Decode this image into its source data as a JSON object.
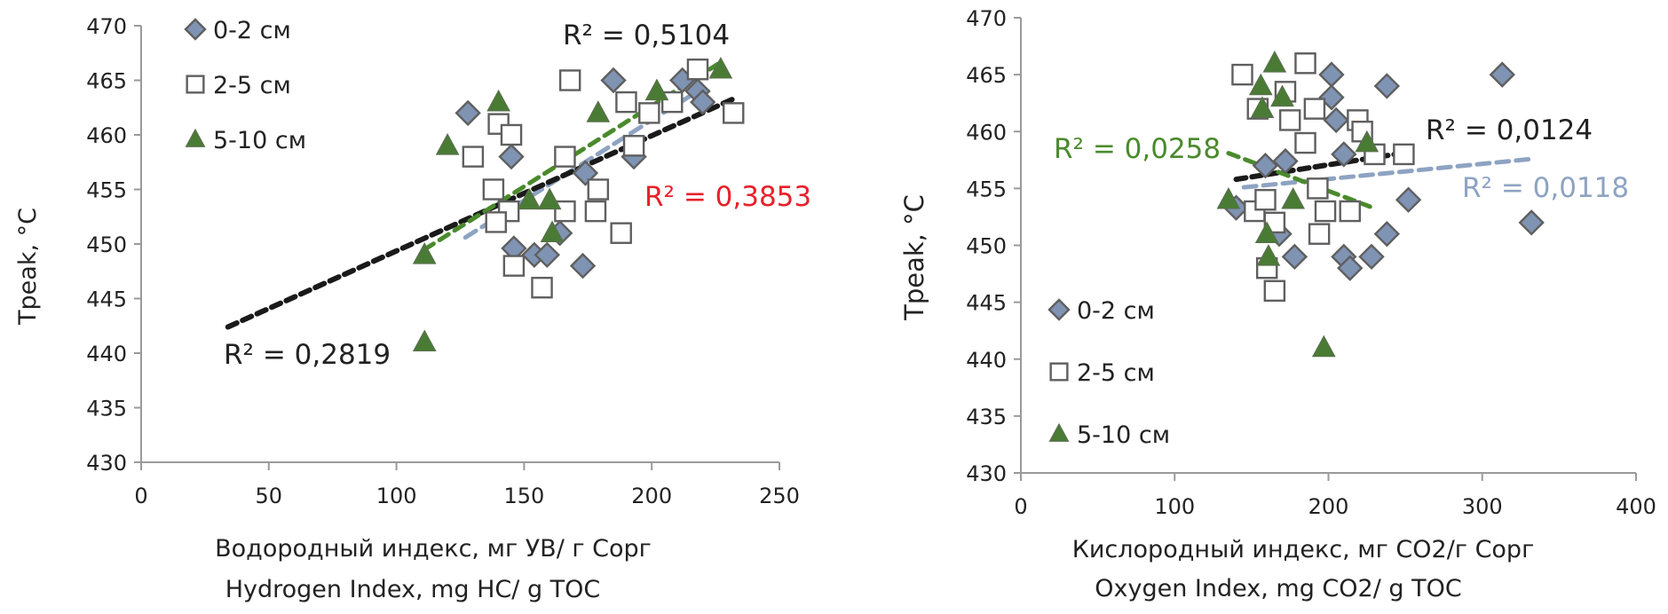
{
  "chart_data": [
    {
      "type": "scatter",
      "title": "",
      "xlabel": "Водородный индекс, мг УВ/ г Сорг",
      "xlabel2": "Hydrogen Index, mg HC/ g TOC",
      "ylabel": "Tpeak, °C",
      "xlim": [
        0,
        250
      ],
      "ylim": [
        430,
        470
      ],
      "xticks": [
        "0",
        "50",
        "100",
        "150",
        "200",
        "250"
      ],
      "yticks": [
        "430",
        "435",
        "440",
        "445",
        "450",
        "455",
        "460",
        "465",
        "470"
      ],
      "grid": false,
      "legend_position": "top-left",
      "series": [
        {
          "name": "0-2 см",
          "marker": "diamond",
          "color": "#7f93b3",
          "points": [
            [
              128,
              462
            ],
            [
              145,
              458
            ],
            [
              185,
              465
            ],
            [
              193,
              458
            ],
            [
              174,
              456.5
            ],
            [
              212,
              465
            ],
            [
              218,
              464
            ],
            [
              220,
              463
            ],
            [
              154,
              449
            ],
            [
              159,
              449
            ],
            [
              146,
              449.6
            ],
            [
              173,
              448
            ],
            [
              164,
              451
            ]
          ],
          "trendline": {
            "x": [
              127,
              218
            ],
            "y": [
              450.6,
              464
            ],
            "color": "#8ea3c2",
            "r2_label": "R² = 0,3853",
            "label_color": "#e8202a"
          }
        },
        {
          "name": "2-5 см",
          "marker": "square",
          "color": "#ffffff",
          "points": [
            [
              140,
              461
            ],
            [
              145,
              460
            ],
            [
              130,
              458
            ],
            [
              168,
              465
            ],
            [
              190,
              463
            ],
            [
              193,
              459
            ],
            [
              166,
              458
            ],
            [
              138,
              455
            ],
            [
              179,
              455
            ],
            [
              166,
              453
            ],
            [
              178,
              453
            ],
            [
              188,
              451
            ],
            [
              144,
              453
            ],
            [
              139,
              452
            ],
            [
              146,
              448
            ],
            [
              157,
              446
            ],
            [
              218,
              466
            ],
            [
              232,
              462
            ],
            [
              208,
              463
            ],
            [
              199,
              462
            ]
          ],
          "trendline": {
            "x": [
              34,
              232
            ],
            "y": [
              442.4,
              463.3
            ],
            "color": "#1a1a1a",
            "r2_label": "R² = 0,2819",
            "label_color": "#222222"
          }
        },
        {
          "name": "5-10 см",
          "marker": "triangle",
          "color": "#4a7b35",
          "points": [
            [
              140,
              463
            ],
            [
              120,
              459
            ],
            [
              179,
              462
            ],
            [
              152,
              454
            ],
            [
              160,
              454
            ],
            [
              161,
              451
            ],
            [
              111,
              449
            ],
            [
              111,
              441
            ],
            [
              227,
              466
            ],
            [
              202,
              464
            ]
          ],
          "trendline": {
            "x": [
              111,
              226
            ],
            "y": [
              449.5,
              466.5
            ],
            "color": "#4a8a2c",
            "r2_label": "R² = 0,5104",
            "label_color": "#222222"
          }
        }
      ]
    },
    {
      "type": "scatter",
      "title": "",
      "xlabel": "Кислородный индекс, мг CO2/г Сорг",
      "xlabel2": "Oxygen Index, mg CO2/ g TOC",
      "ylabel": "Tpeak, °C",
      "xlim": [
        0,
        400
      ],
      "ylim": [
        430,
        470
      ],
      "xticks": [
        "0",
        "100",
        "200",
        "300",
        "400"
      ],
      "yticks": [
        "430",
        "435",
        "440",
        "445",
        "450",
        "455",
        "460",
        "465",
        "470"
      ],
      "grid": false,
      "legend_position": "bottom-left",
      "series": [
        {
          "name": "0-2 см",
          "marker": "diamond",
          "color": "#7f93b3",
          "points": [
            [
              313,
              465
            ],
            [
              332,
              452
            ],
            [
              238,
              464
            ],
            [
              252,
              454
            ],
            [
              238,
              451
            ],
            [
              228,
              449
            ],
            [
              210,
              449
            ],
            [
              214,
              448
            ],
            [
              178,
              449
            ],
            [
              202,
              465
            ],
            [
              202,
              463
            ],
            [
              205,
              461
            ],
            [
              210,
              458
            ],
            [
              159,
              457
            ],
            [
              172,
              457.4
            ],
            [
              140,
              453.3
            ],
            [
              168,
              451
            ]
          ],
          "trendline": {
            "x": [
              145,
              333
            ],
            "y": [
              455.1,
              457.6
            ],
            "color": "#8ea3c2",
            "r2_label": "R² = 0,0118",
            "label_color": "#8ea3c2"
          }
        },
        {
          "name": "2-5 см",
          "marker": "square",
          "color": "#ffffff",
          "points": [
            [
              144,
              465
            ],
            [
              185,
              466
            ],
            [
              154,
              462
            ],
            [
              172,
              463.5
            ],
            [
              191,
              462
            ],
            [
              175,
              461
            ],
            [
              219,
              461
            ],
            [
              222,
              460
            ],
            [
              185,
              459
            ],
            [
              249,
              458
            ],
            [
              230,
              458
            ],
            [
              193,
              455
            ],
            [
              152,
              453
            ],
            [
              198,
              453
            ],
            [
              214,
              453
            ],
            [
              194,
              451
            ],
            [
              165,
              452
            ],
            [
              160,
              448
            ],
            [
              165,
              446
            ],
            [
              159,
              454
            ]
          ],
          "trendline": {
            "x": [
              140,
              248
            ],
            "y": [
              455.8,
              458.1
            ],
            "color": "#1a1a1a",
            "r2_label": "R² = 0,0124",
            "label_color": "#222222"
          }
        },
        {
          "name": "5-10 см",
          "marker": "triangle",
          "color": "#4a7b35",
          "points": [
            [
              165,
              466
            ],
            [
              156,
              464
            ],
            [
              170,
              463
            ],
            [
              157,
              462
            ],
            [
              225,
              459
            ],
            [
              135,
              454
            ],
            [
              177,
              454
            ],
            [
              160,
              451
            ],
            [
              161,
              449
            ],
            [
              197,
              441
            ]
          ],
          "trendline": {
            "x": [
              135,
              227
            ],
            "y": [
              458.1,
              453.4
            ],
            "color": "#4a8a2c",
            "r2_label": "R² = 0,0258",
            "label_color": "#4a8a2c"
          }
        }
      ]
    }
  ]
}
